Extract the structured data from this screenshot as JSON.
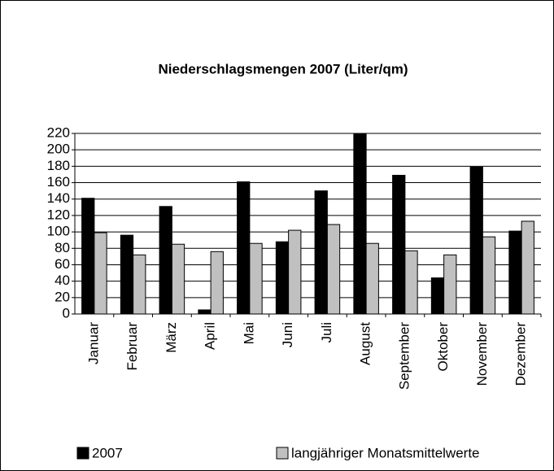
{
  "chart_data": {
    "type": "bar",
    "title": "Niederschlagsmengen 2007 (Liter/qm)",
    "categories": [
      "Januar",
      "Februar",
      "März",
      "April",
      "Mai",
      "Juni",
      "Juli",
      "August",
      "September",
      "Oktober",
      "November",
      "Dezember"
    ],
    "series": [
      {
        "name": "2007",
        "color": "#000000",
        "values": [
          141,
          96,
          131,
          5,
          161,
          88,
          150,
          220,
          169,
          44,
          179,
          101
        ]
      },
      {
        "name": "langjähriger Monatsmittelwerte",
        "color": "#c0c0c0",
        "values": [
          99,
          72,
          85,
          76,
          86,
          102,
          109,
          86,
          77,
          72,
          94,
          113
        ]
      }
    ],
    "ylim": [
      0,
      220
    ],
    "yticks": [
      0,
      20,
      40,
      60,
      80,
      100,
      120,
      140,
      160,
      180,
      200,
      220
    ],
    "grid": true,
    "legend": "bottom"
  }
}
